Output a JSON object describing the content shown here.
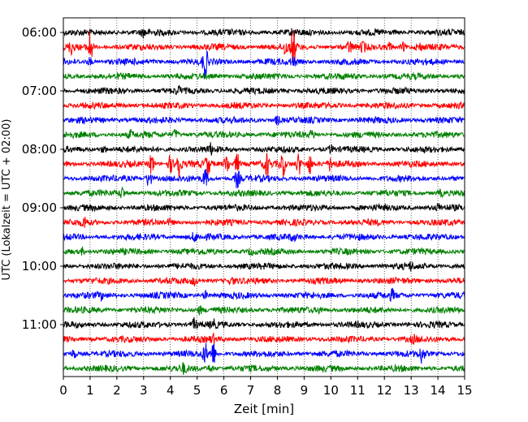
{
  "chart_data": {
    "type": "line",
    "title": "",
    "xlabel": "Zeit  [min]",
    "ylabel": "UTC (Lokalzeit = UTC + 02:00)",
    "xlim": [
      0,
      15
    ],
    "x_ticks": [
      "0",
      "1",
      "2",
      "3",
      "4",
      "5",
      "6",
      "7",
      "8",
      "9",
      "10",
      "11",
      "12",
      "13",
      "14",
      "15"
    ],
    "y_ticks": [
      "06:00",
      "07:00",
      "08:00",
      "09:00",
      "10:00",
      "11:00"
    ],
    "grid": "vertical dotted at each minute",
    "trace_colors": [
      "#000000",
      "#ff0000",
      "#0000ff",
      "#008000"
    ],
    "traces": [
      {
        "start": "06:00",
        "color": "#000000",
        "events": [
          [
            3.0,
            0.5
          ],
          [
            8.6,
            0.5
          ]
        ]
      },
      {
        "start": "06:15",
        "color": "#ff0000",
        "events": [
          [
            1.0,
            2.5
          ],
          [
            0.3,
            0.8
          ],
          [
            8.3,
            1.0
          ],
          [
            8.6,
            2.5
          ],
          [
            10.7,
            0.8
          ],
          [
            11.2,
            0.6
          ],
          [
            12.2,
            0.6
          ],
          [
            12.7,
            0.6
          ],
          [
            13.3,
            0.5
          ]
        ]
      },
      {
        "start": "06:30",
        "color": "#0000ff",
        "events": [
          [
            1.0,
            0.5
          ],
          [
            5.3,
            2.2
          ],
          [
            8.6,
            0.6
          ]
        ]
      },
      {
        "start": "06:45",
        "color": "#008000",
        "events": []
      },
      {
        "start": "07:00",
        "color": "#000000",
        "events": [
          [
            4.3,
            0.4
          ]
        ]
      },
      {
        "start": "07:15",
        "color": "#ff0000",
        "events": []
      },
      {
        "start": "07:30",
        "color": "#0000ff",
        "events": [
          [
            8.0,
            0.6
          ]
        ]
      },
      {
        "start": "07:45",
        "color": "#008000",
        "events": [
          [
            2.5,
            0.5
          ],
          [
            4.2,
            0.7
          ],
          [
            9.3,
            0.5
          ]
        ]
      },
      {
        "start": "08:00",
        "color": "#000000",
        "events": [
          [
            1.5,
            0.5
          ],
          [
            5.5,
            0.6
          ],
          [
            10.0,
            0.5
          ]
        ]
      },
      {
        "start": "08:15",
        "color": "#ff0000",
        "events": [
          [
            3.3,
            1.5
          ],
          [
            4.0,
            1.2
          ],
          [
            4.3,
            2.4
          ],
          [
            5.4,
            1.6
          ],
          [
            6.1,
            1.6
          ],
          [
            6.5,
            1.4
          ],
          [
            7.6,
            1.6
          ],
          [
            8.2,
            1.8
          ],
          [
            8.8,
            1.6
          ],
          [
            9.2,
            1.5
          ],
          [
            10.0,
            1.0
          ]
        ]
      },
      {
        "start": "08:30",
        "color": "#0000ff",
        "events": [
          [
            3.2,
            1.4
          ],
          [
            5.3,
            1.3
          ],
          [
            6.5,
            1.3
          ]
        ]
      },
      {
        "start": "08:45",
        "color": "#008000",
        "events": [
          [
            2.2,
            0.8
          ],
          [
            14.1,
            0.4
          ]
        ]
      },
      {
        "start": "09:00",
        "color": "#000000",
        "events": [
          [
            14.0,
            0.4
          ]
        ]
      },
      {
        "start": "09:15",
        "color": "#ff0000",
        "events": [
          [
            0.8,
            0.7
          ],
          [
            4.0,
            0.4
          ]
        ]
      },
      {
        "start": "09:30",
        "color": "#0000ff",
        "events": [
          [
            4.9,
            0.6
          ],
          [
            8.6,
            0.4
          ]
        ]
      },
      {
        "start": "09:45",
        "color": "#008000",
        "events": [
          [
            0.7,
            0.4
          ],
          [
            7.0,
            0.4
          ]
        ]
      },
      {
        "start": "10:00",
        "color": "#000000",
        "events": [
          [
            13.0,
            0.4
          ]
        ]
      },
      {
        "start": "10:15",
        "color": "#ff0000",
        "events": [
          [
            4.9,
            0.5
          ],
          [
            6.3,
            0.4
          ]
        ]
      },
      {
        "start": "10:30",
        "color": "#0000ff",
        "events": [
          [
            1.4,
            0.4
          ],
          [
            5.3,
            0.5
          ],
          [
            12.3,
            0.7
          ]
        ]
      },
      {
        "start": "10:45",
        "color": "#008000",
        "events": [
          [
            5.1,
            0.5
          ],
          [
            9.6,
            0.4
          ]
        ]
      },
      {
        "start": "11:00",
        "color": "#000000",
        "events": [
          [
            4.9,
            0.8
          ],
          [
            5.6,
            0.5
          ]
        ]
      },
      {
        "start": "11:15",
        "color": "#ff0000",
        "events": [
          [
            5.6,
            0.5
          ],
          [
            13.1,
            0.4
          ]
        ]
      },
      {
        "start": "11:30",
        "color": "#0000ff",
        "events": [
          [
            0.4,
            0.6
          ],
          [
            5.3,
            1.4
          ],
          [
            5.6,
            1.6
          ],
          [
            13.4,
            1.2
          ]
        ]
      },
      {
        "start": "11:45",
        "color": "#008000",
        "events": [
          [
            4.5,
            0.6
          ],
          [
            5.5,
            0.5
          ]
        ]
      }
    ]
  }
}
